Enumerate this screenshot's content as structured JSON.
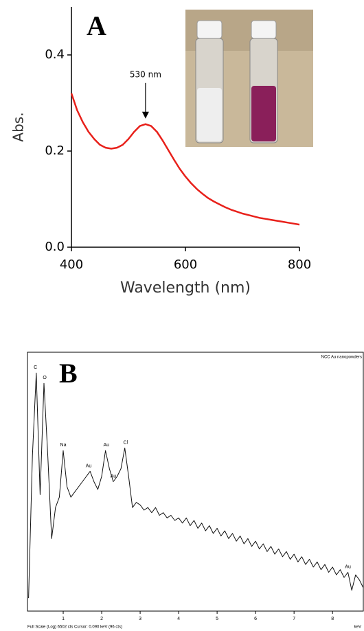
{
  "chart_data": [
    {
      "type": "line",
      "panel_label": "A",
      "x_label": "Wavelength (nm)",
      "y_label": "Abs.",
      "x": [
        400,
        410,
        420,
        430,
        440,
        450,
        460,
        470,
        480,
        490,
        500,
        510,
        520,
        530,
        540,
        550,
        560,
        570,
        580,
        590,
        600,
        610,
        620,
        630,
        640,
        650,
        660,
        670,
        680,
        690,
        700,
        710,
        720,
        730,
        740,
        750,
        760,
        770,
        780,
        790,
        800
      ],
      "series": [
        {
          "color": "#e8201a",
          "values": [
            0.32,
            0.285,
            0.26,
            0.24,
            0.225,
            0.213,
            0.207,
            0.205,
            0.207,
            0.213,
            0.225,
            0.24,
            0.252,
            0.256,
            0.252,
            0.24,
            0.222,
            0.202,
            0.182,
            0.163,
            0.147,
            0.133,
            0.121,
            0.111,
            0.102,
            0.095,
            0.089,
            0.083,
            0.078,
            0.074,
            0.07,
            0.067,
            0.064,
            0.061,
            0.059,
            0.057,
            0.055,
            0.053,
            0.051,
            0.049,
            0.047
          ]
        }
      ],
      "xlim": [
        400,
        800
      ],
      "xticks": [
        400,
        600,
        800
      ],
      "ylim": [
        0,
        0.5
      ],
      "yticks": [
        {
          "value": 0,
          "label": "0.0"
        },
        0.2,
        0.4
      ],
      "annotations": [
        {
          "text": "530 nm",
          "x": 530,
          "y": 0.256
        }
      ]
    },
    {
      "type": "line",
      "panel_label": "B",
      "title": "NCC Au nanopowders",
      "x_label": "keV",
      "footer": "Full Scale (Log) 6502 cts  Cursor: 0.090 keV (96 cts)",
      "x": [
        0.1,
        0.2,
        0.3,
        0.4,
        0.5,
        0.6,
        0.7,
        0.8,
        0.9,
        1.0,
        1.1,
        1.2,
        1.3,
        1.4,
        1.5,
        1.6,
        1.7,
        1.8,
        1.9,
        2.0,
        2.1,
        2.2,
        2.3,
        2.4,
        2.5,
        2.6,
        2.7,
        2.8,
        2.9,
        3.0,
        3.1,
        3.2,
        3.3,
        3.4,
        3.5,
        3.6,
        3.7,
        3.8,
        3.9,
        4.0,
        4.1,
        4.2,
        4.3,
        4.4,
        4.5,
        4.6,
        4.7,
        4.8,
        4.9,
        5.0,
        5.1,
        5.2,
        5.3,
        5.4,
        5.5,
        5.6,
        5.7,
        5.8,
        5.9,
        6.0,
        6.1,
        6.2,
        6.3,
        6.4,
        6.5,
        6.6,
        6.7,
        6.8,
        6.9,
        7.0,
        7.1,
        7.2,
        7.3,
        7.4,
        7.5,
        7.6,
        7.7,
        7.8,
        7.9,
        8.0,
        8.1,
        8.2,
        8.3,
        8.4,
        8.5,
        8.6,
        8.7,
        8.8
      ],
      "series": [
        {
          "color": "#111111",
          "values": [
            5,
            60,
            92,
            45,
            88,
            60,
            28,
            40,
            44,
            62,
            48,
            44,
            46,
            48,
            50,
            52,
            54,
            50,
            47,
            52,
            62,
            55,
            50,
            52,
            55,
            63,
            52,
            40,
            42,
            41,
            39,
            40,
            38,
            40,
            37,
            38,
            36,
            37,
            35,
            36,
            34,
            36,
            33,
            35,
            32,
            34,
            31,
            33,
            30,
            32,
            29,
            31,
            28,
            30,
            27,
            29,
            26,
            28,
            25,
            27,
            24,
            26,
            23,
            25,
            22,
            24,
            21,
            23,
            20,
            22,
            19,
            21,
            18,
            20,
            17,
            19,
            16,
            18,
            15,
            17,
            14,
            16,
            13,
            15,
            8,
            14,
            12,
            9
          ]
        }
      ],
      "xlim": [
        0,
        8.8
      ],
      "xticks": [
        1,
        2,
        3,
        4,
        5,
        6,
        7,
        8
      ],
      "ylim": [
        0,
        100
      ],
      "annotations": [
        {
          "text": "C",
          "x": 0.28,
          "y": 92
        },
        {
          "text": "O",
          "x": 0.52,
          "y": 88
        },
        {
          "text": "Na",
          "x": 1.0,
          "y": 62
        },
        {
          "text": "Au",
          "x": 1.66,
          "y": 54
        },
        {
          "text": "Au",
          "x": 2.12,
          "y": 62
        },
        {
          "text": "Au",
          "x": 2.3,
          "y": 50
        },
        {
          "text": "Cl",
          "x": 2.62,
          "y": 63
        },
        {
          "text": "Au",
          "x": 8.4,
          "y": 15
        }
      ]
    }
  ]
}
